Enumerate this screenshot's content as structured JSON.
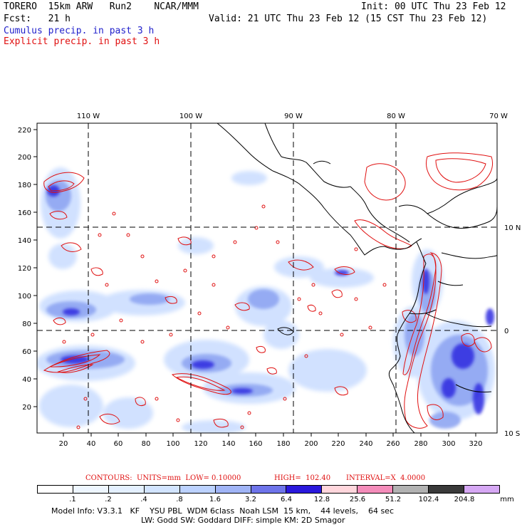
{
  "header": {
    "model_line": "TORERO  15km ARW   Run2    NCAR/MMM",
    "init_line": "Init: 00 UTC Thu 23 Feb 12",
    "fcst_line": "Fcst:   21 h",
    "valid_line": "Valid: 21 UTC Thu 23 Feb 12 (15 CST Thu 23 Feb 12)",
    "cumulus_label": "Cumulus precip. in past 3 h",
    "explicit_label": "Explicit precip. in past 3 h"
  },
  "axes": {
    "lon_labels": [
      "110 W",
      "100 W",
      "90 W",
      "80 W",
      "70 W"
    ],
    "lat_labels": [
      "10 N",
      "0",
      "10 S"
    ],
    "y_ticks": [
      "220",
      "200",
      "180",
      "160",
      "140",
      "120",
      "100",
      "80",
      "60",
      "40",
      "20"
    ],
    "x_ticks": [
      "20",
      "40",
      "60",
      "80",
      "100",
      "120",
      "140",
      "160",
      "180",
      "200",
      "220",
      "240",
      "260",
      "280",
      "300",
      "320"
    ],
    "x_range": [
      0,
      335
    ],
    "y_range": [
      0,
      225
    ]
  },
  "contours": {
    "units_text": "CONTOURS:  UNITS=mm  LOW= 0.10000",
    "high_text": "HIGH=  102.40",
    "interval_text": "INTERVAL=X  4.0000"
  },
  "legend": {
    "labels": [
      ".1",
      ".2",
      ".4",
      ".8",
      "1.6",
      "3.2",
      "6.4",
      "12.8",
      "25.6",
      "51.2",
      "102.4",
      "204.8"
    ],
    "unit": "mm",
    "colors": [
      "#ffffff",
      "#eef6ff",
      "#e4f0ff",
      "#d2e4ff",
      "#bcd2ff",
      "#a0b4f6",
      "#6e74ea",
      "#2a18dc",
      "#ffd6dc",
      "#f48cba",
      "#b2b2b2",
      "#3a3a3a",
      "#d6a8f4"
    ]
  },
  "footer": {
    "info_line1": "Model Info: V3.3.1   KF    YSU PBL  WDM 6class  Noah LSM  15 km,    44 levels,    64 sec",
    "info_line2": "LW: Godd SW: Goddard DIFF: simple KM: 2D Smagor"
  },
  "map_colors": {
    "cumulus_light": "#cfe0ff",
    "cumulus_mid": "#8fa6f2",
    "cumulus_dark": "#2f2ce0",
    "explicit_contour": "#e01010",
    "coast": "#000000"
  }
}
